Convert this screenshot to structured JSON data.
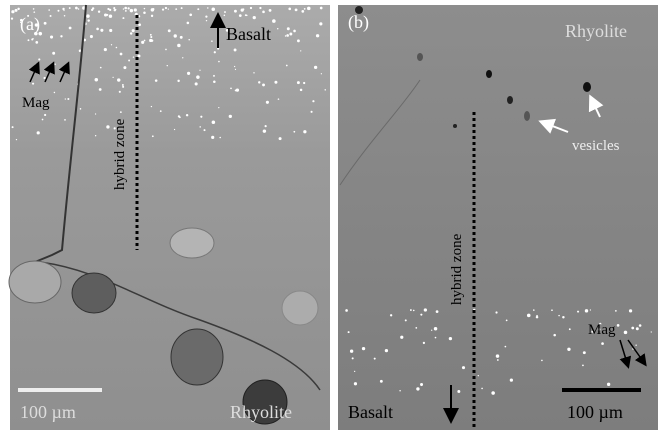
{
  "panels": [
    {
      "label": "(a)",
      "top_label": "Basalt",
      "mineral_label": "Mag",
      "zone_label": "hybrid zone",
      "scale_label": "100 µm",
      "bottom_label": "Rhyolite"
    },
    {
      "label": "(b)",
      "top_label": "Rhyolite",
      "feature_label": "vesicles",
      "zone_label": "hybrid zone",
      "mineral_label": "Mag",
      "scale_label": "100 µm",
      "bottom_label": "Basalt"
    }
  ]
}
